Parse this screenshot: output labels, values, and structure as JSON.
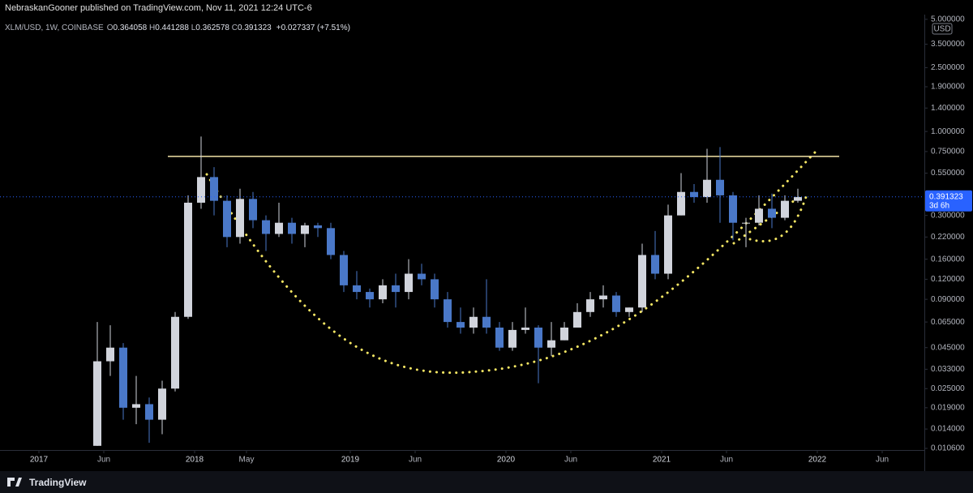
{
  "header": {
    "publisher": "NebraskanGooner published on TradingView.com, Nov 11, 2021 12:24 UTC-6"
  },
  "chart_data": {
    "type": "candlestick",
    "symbol": "XLM/USD, 1W, COINBASE",
    "ohlc_labels": [
      "O",
      "H",
      "L",
      "C"
    ],
    "ohlc": [
      0.364058,
      0.441288,
      0.362578,
      0.391323
    ],
    "change": "+0.027337 (+7.51%)",
    "currency": "USD",
    "countdown": "3d 6h",
    "log_scale": true,
    "up_color": "#d1d4dc",
    "down_color": "#4a78c8",
    "x": [
      "2017-05",
      "2017-06",
      "2017-07",
      "2017-08",
      "2017-09",
      "2017-10",
      "2017-11",
      "2017-12",
      "2018-01",
      "2018-02",
      "2018-03",
      "2018-04",
      "2018-05",
      "2018-06",
      "2018-07",
      "2018-08",
      "2018-09",
      "2018-10",
      "2018-11",
      "2018-12",
      "2019-01",
      "2019-02",
      "2019-03",
      "2019-04",
      "2019-05",
      "2019-06",
      "2019-07",
      "2019-08",
      "2019-09",
      "2019-10",
      "2019-11",
      "2019-12",
      "2020-01",
      "2020-02",
      "2020-03",
      "2020-04",
      "2020-05",
      "2020-06",
      "2020-07",
      "2020-08",
      "2020-09",
      "2020-10",
      "2020-11",
      "2020-12",
      "2021-01",
      "2021-02",
      "2021-03",
      "2021-04",
      "2021-05",
      "2021-06",
      "2021-07",
      "2021-08",
      "2021-09",
      "2021-10",
      "2021-11"
    ],
    "open": [
      0.011,
      0.037,
      0.045,
      0.019,
      0.02,
      0.016,
      0.025,
      0.07,
      0.36,
      0.52,
      0.37,
      0.22,
      0.38,
      0.28,
      0.23,
      0.27,
      0.23,
      0.26,
      0.25,
      0.17,
      0.11,
      0.1,
      0.09,
      0.11,
      0.1,
      0.13,
      0.12,
      0.09,
      0.065,
      0.06,
      0.07,
      0.06,
      0.045,
      0.058,
      0.06,
      0.045,
      0.05,
      0.06,
      0.075,
      0.09,
      0.095,
      0.075,
      0.08,
      0.17,
      0.13,
      0.3,
      0.42,
      0.39,
      0.5,
      0.4,
      0.27,
      0.27,
      0.33,
      0.29,
      0.37
    ],
    "high": [
      0.065,
      0.062,
      0.048,
      0.03,
      0.022,
      0.028,
      0.075,
      0.4,
      0.93,
      0.6,
      0.4,
      0.44,
      0.42,
      0.3,
      0.36,
      0.29,
      0.27,
      0.27,
      0.27,
      0.18,
      0.135,
      0.105,
      0.12,
      0.13,
      0.16,
      0.15,
      0.13,
      0.1,
      0.08,
      0.08,
      0.12,
      0.065,
      0.065,
      0.08,
      0.062,
      0.065,
      0.065,
      0.085,
      0.1,
      0.11,
      0.1,
      0.08,
      0.2,
      0.24,
      0.35,
      0.55,
      0.47,
      0.78,
      0.8,
      0.42,
      0.29,
      0.4,
      0.41,
      0.4,
      0.44
    ],
    "low": [
      0.011,
      0.03,
      0.016,
      0.015,
      0.0115,
      0.013,
      0.024,
      0.068,
      0.33,
      0.3,
      0.19,
      0.2,
      0.25,
      0.18,
      0.22,
      0.2,
      0.19,
      0.22,
      0.16,
      0.1,
      0.09,
      0.08,
      0.085,
      0.08,
      0.09,
      0.11,
      0.08,
      0.06,
      0.055,
      0.055,
      0.055,
      0.043,
      0.043,
      0.055,
      0.027,
      0.04,
      0.05,
      0.06,
      0.07,
      0.08,
      0.07,
      0.07,
      0.075,
      0.12,
      0.12,
      0.3,
      0.36,
      0.36,
      0.27,
      0.21,
      0.19,
      0.26,
      0.25,
      0.28,
      0.36
    ],
    "close": [
      0.037,
      0.045,
      0.019,
      0.02,
      0.016,
      0.025,
      0.07,
      0.36,
      0.52,
      0.37,
      0.22,
      0.38,
      0.28,
      0.23,
      0.27,
      0.23,
      0.26,
      0.25,
      0.17,
      0.11,
      0.1,
      0.09,
      0.11,
      0.1,
      0.13,
      0.12,
      0.09,
      0.065,
      0.06,
      0.07,
      0.06,
      0.045,
      0.058,
      0.06,
      0.045,
      0.05,
      0.06,
      0.075,
      0.09,
      0.095,
      0.075,
      0.08,
      0.17,
      0.13,
      0.3,
      0.42,
      0.39,
      0.5,
      0.4,
      0.27,
      0.27,
      0.33,
      0.29,
      0.37,
      0.39
    ],
    "resistance": 0.7,
    "ylim": [
      0.0106,
      5.35
    ],
    "yticks": [
      {
        "value": 5,
        "label": "5.000000"
      },
      {
        "value": 3.5,
        "label": "3.500000"
      },
      {
        "value": 2.5,
        "label": "2.500000"
      },
      {
        "value": 1.9,
        "label": "1.900000"
      },
      {
        "value": 1.4,
        "label": "1.400000"
      },
      {
        "value": 1,
        "label": "1.000000"
      },
      {
        "value": 0.75,
        "label": "0.750000"
      },
      {
        "value": 0.55,
        "label": "0.550000"
      },
      {
        "value": 0.3,
        "label": "0.300000"
      },
      {
        "value": 0.22,
        "label": "0.220000"
      },
      {
        "value": 0.16,
        "label": "0.160000"
      },
      {
        "value": 0.12,
        "label": "0.120000"
      },
      {
        "value": 0.09,
        "label": "0.090000"
      },
      {
        "value": 0.065,
        "label": "0.065000"
      },
      {
        "value": 0.045,
        "label": "0.045000"
      },
      {
        "value": 0.033,
        "label": "0.033000"
      },
      {
        "value": 0.025,
        "label": "0.025000"
      },
      {
        "value": 0.019,
        "label": "0.019000"
      },
      {
        "value": 0.014,
        "label": "0.014000"
      },
      {
        "value": 0.0106,
        "label": "0.010600"
      }
    ],
    "xticks": [
      {
        "value": "2017-01",
        "label": "2017"
      },
      {
        "value": "2017-06",
        "label": "Jun"
      },
      {
        "value": "2018-01",
        "label": "2018"
      },
      {
        "value": "2018-05",
        "label": "May"
      },
      {
        "value": "2019-01",
        "label": "2019"
      },
      {
        "value": "2019-06",
        "label": "Jun"
      },
      {
        "value": "2020-01",
        "label": "2020"
      },
      {
        "value": "2020-06",
        "label": "Jun"
      },
      {
        "value": "2021-01",
        "label": "2021"
      },
      {
        "value": "2021-06",
        "label": "Jun"
      },
      {
        "value": "2022-01",
        "label": "2022"
      },
      {
        "value": "2022-06",
        "label": "Jun"
      }
    ]
  },
  "footer": {
    "brand": "TradingView"
  }
}
